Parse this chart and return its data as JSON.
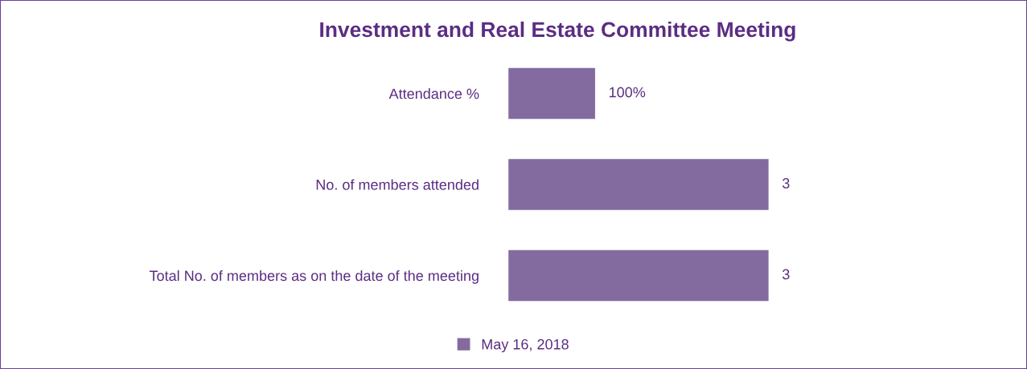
{
  "chart_data": {
    "type": "bar",
    "orientation": "horizontal",
    "title": "Investment and Real Estate Committee Meeting",
    "categories": [
      "Attendance %",
      "No. of members attended",
      "Total No. of members as on the date of the meeting"
    ],
    "series": [
      {
        "name": "May 16, 2018",
        "color": "#836ba0",
        "values": [
          1,
          3,
          3
        ],
        "value_labels": [
          "100%",
          "3",
          "3"
        ]
      }
    ],
    "legend": "bottom",
    "grid": false
  }
}
